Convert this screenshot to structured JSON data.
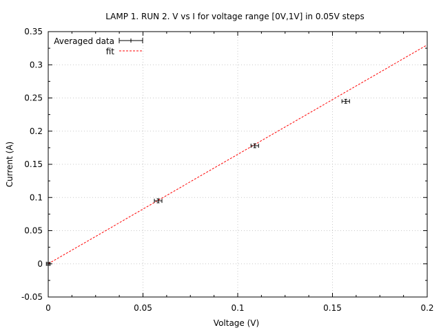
{
  "chart_data": {
    "type": "scatter",
    "title": "LAMP 1. RUN 2. V vs I for voltage range [0V,1V] in 0.05V steps",
    "xlabel": "Voltage (V)",
    "ylabel": "Current (A)",
    "xlim": [
      0,
      0.2
    ],
    "ylim": [
      -0.05,
      0.35
    ],
    "x_ticks": [
      0,
      0.05,
      0.1,
      0.15,
      0.2
    ],
    "x_tick_labels": [
      "0",
      "0.05",
      "0.1",
      "0.15",
      "0.2"
    ],
    "y_ticks": [
      -0.05,
      0,
      0.05,
      0.1,
      0.15,
      0.2,
      0.25,
      0.3,
      0.35
    ],
    "y_tick_labels": [
      "-0.05",
      "0",
      "0.05",
      "0.1",
      "0.15",
      "0.2",
      "0.25",
      "0.3",
      "0.35"
    ],
    "grid": true,
    "legend_position": "top-left",
    "series": [
      {
        "name": "Averaged data",
        "style": "errorbars",
        "color": "#000000",
        "points": [
          {
            "x": 0.0,
            "y": 0.0,
            "xerr": 0.001,
            "yerr": 0.002
          },
          {
            "x": 0.058,
            "y": 0.095,
            "xerr": 0.002,
            "yerr": 0.003
          },
          {
            "x": 0.109,
            "y": 0.178,
            "xerr": 0.002,
            "yerr": 0.003
          },
          {
            "x": 0.157,
            "y": 0.245,
            "xerr": 0.002,
            "yerr": 0.003
          }
        ]
      },
      {
        "name": "fit",
        "style": "dashed-line",
        "color": "#ff0000",
        "x": [
          0,
          0.2
        ],
        "y": [
          0,
          0.33
        ]
      }
    ]
  }
}
